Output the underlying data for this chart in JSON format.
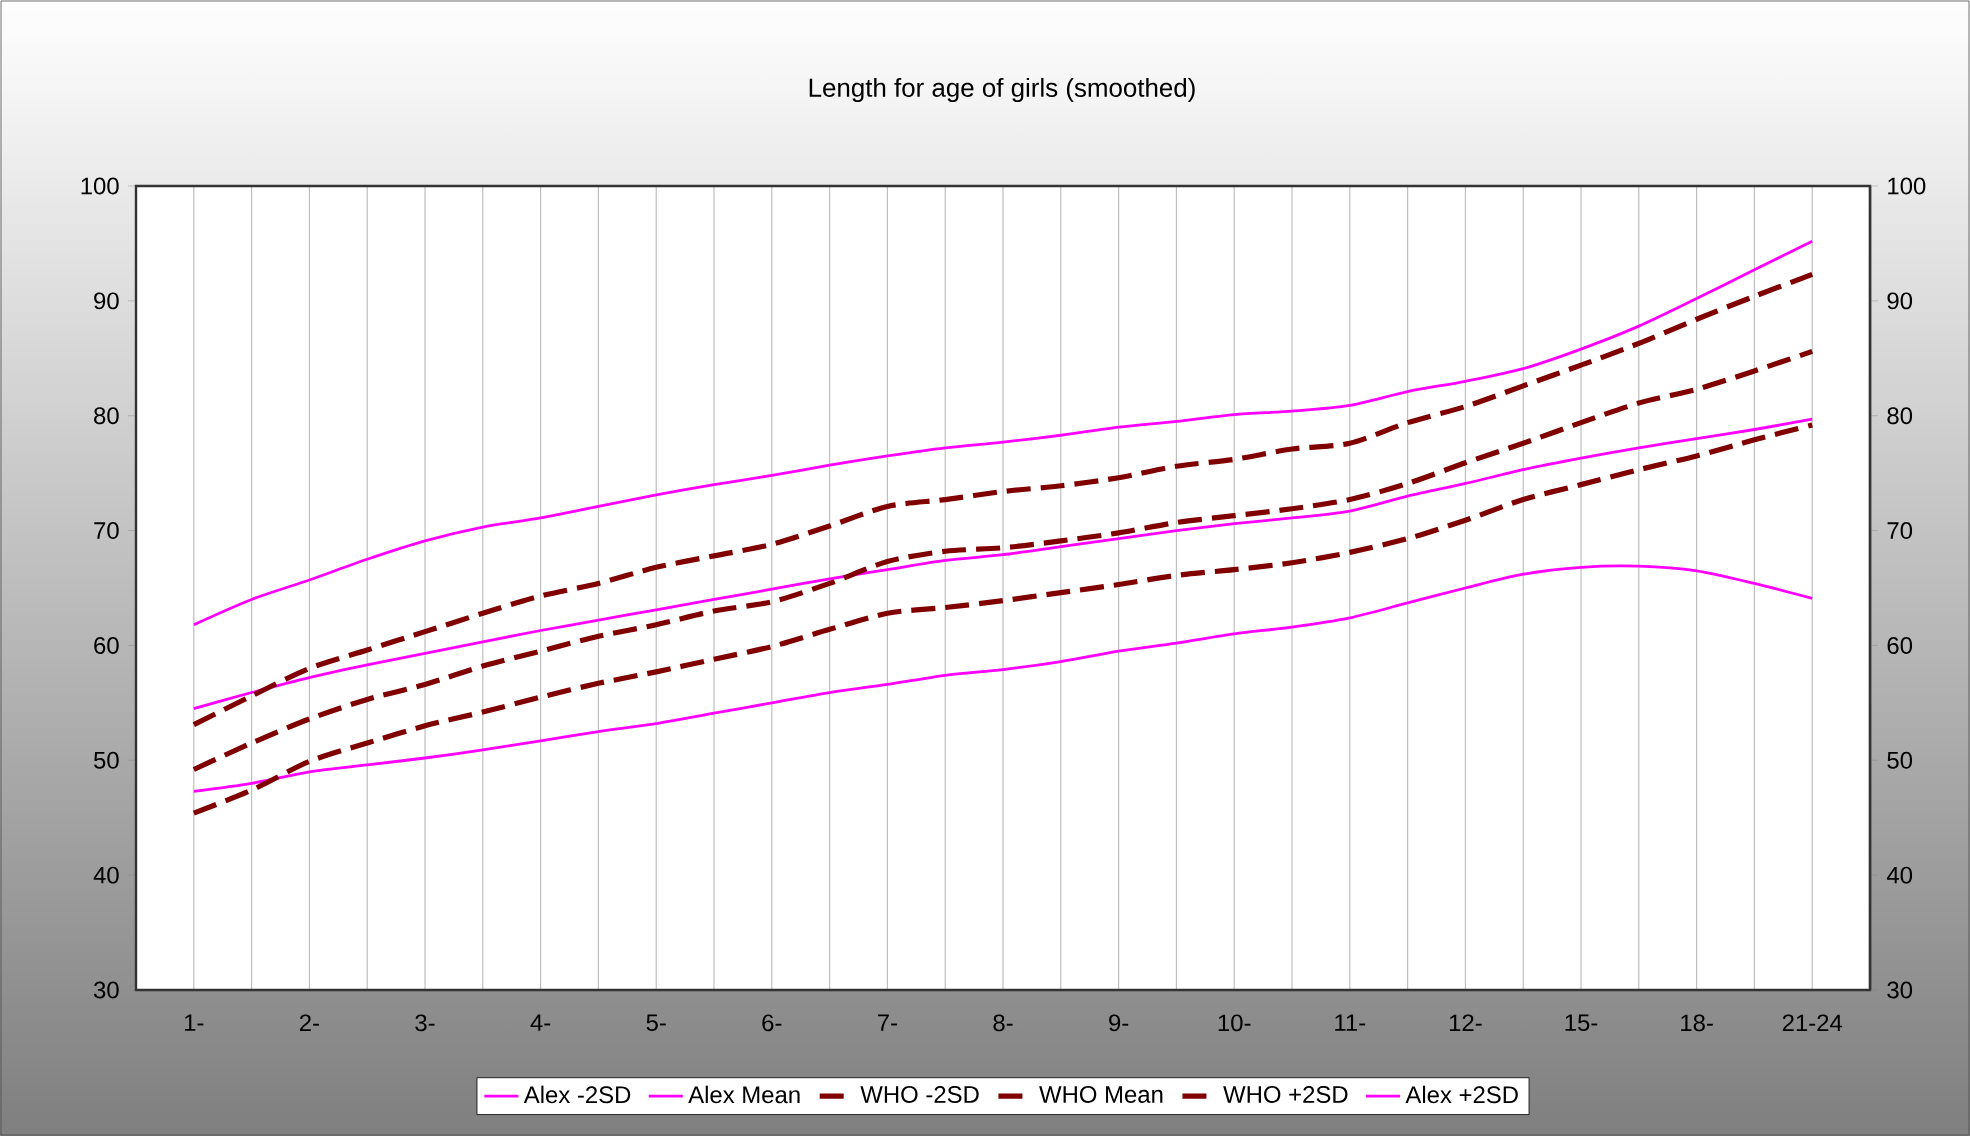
{
  "chart_data": {
    "type": "line",
    "title": "Length for age of girls (smoothed)",
    "categories": [
      "1-",
      null,
      "2-",
      null,
      "3-",
      null,
      "4-",
      null,
      "5-",
      null,
      "6-",
      null,
      "7-",
      null,
      "8-",
      null,
      "9-",
      null,
      "10-",
      null,
      "11-",
      null,
      "12-",
      null,
      "15-",
      null,
      "18-",
      null,
      "21-24"
    ],
    "series": [
      {
        "name": "Alex -2SD",
        "color": "#ff00ff",
        "line_style": "solid",
        "values": [
          47.3,
          48.0,
          49.0,
          49.6,
          50.2,
          50.9,
          51.7,
          52.5,
          53.2,
          54.1,
          55.0,
          55.9,
          56.6,
          57.4,
          57.9,
          58.6,
          59.5,
          60.2,
          61.0,
          61.6,
          62.4,
          63.7,
          65.0,
          66.2,
          66.8,
          66.9,
          66.5,
          65.4,
          64.1
        ]
      },
      {
        "name": "Alex Mean",
        "color": "#ff00ff",
        "line_style": "solid",
        "values": [
          54.5,
          55.9,
          57.2,
          58.3,
          59.3,
          60.3,
          61.3,
          62.2,
          63.1,
          64.0,
          64.9,
          65.8,
          66.6,
          67.4,
          67.9,
          68.6,
          69.3,
          70.0,
          70.6,
          71.1,
          71.7,
          73.0,
          74.1,
          75.3,
          76.3,
          77.2,
          78.0,
          78.8,
          79.7
        ]
      },
      {
        "name": "WHO -2SD",
        "color": "#800000",
        "line_style": "dashed",
        "values": [
          45.4,
          47.4,
          49.9,
          51.5,
          53.0,
          54.2,
          55.5,
          56.7,
          57.7,
          58.8,
          59.9,
          61.4,
          62.8,
          63.3,
          63.9,
          64.6,
          65.3,
          66.1,
          66.6,
          67.2,
          68.1,
          69.3,
          70.9,
          72.7,
          74.0,
          75.3,
          76.5,
          77.9,
          79.2
        ]
      },
      {
        "name": "WHO Mean",
        "color": "#800000",
        "line_style": "dashed",
        "values": [
          49.2,
          51.5,
          53.6,
          55.3,
          56.6,
          58.2,
          59.5,
          60.8,
          61.8,
          63.0,
          63.8,
          65.4,
          67.3,
          68.2,
          68.5,
          69.1,
          69.8,
          70.7,
          71.3,
          71.9,
          72.7,
          74.1,
          75.9,
          77.6,
          79.4,
          81.1,
          82.3,
          83.9,
          85.6
        ]
      },
      {
        "name": "WHO +2SD",
        "color": "#800000",
        "line_style": "dashed",
        "values": [
          53.1,
          55.6,
          58.0,
          59.6,
          61.2,
          62.8,
          64.3,
          65.4,
          66.8,
          67.8,
          68.8,
          70.4,
          72.1,
          72.7,
          73.4,
          73.9,
          74.6,
          75.6,
          76.2,
          77.1,
          77.6,
          79.4,
          80.8,
          82.6,
          84.4,
          86.3,
          88.4,
          90.4,
          92.3
        ]
      },
      {
        "name": "Alex +2SD",
        "color": "#ff00ff",
        "line_style": "solid",
        "values": [
          61.8,
          64.0,
          65.7,
          67.5,
          69.1,
          70.3,
          71.1,
          72.1,
          73.1,
          74.0,
          74.8,
          75.7,
          76.5,
          77.2,
          77.7,
          78.3,
          79.0,
          79.5,
          80.1,
          80.4,
          80.9,
          82.1,
          83.0,
          84.1,
          85.8,
          87.8,
          90.2,
          92.7,
          95.2
        ]
      }
    ],
    "ylim": [
      30,
      100
    ],
    "yticks": [
      30,
      40,
      50,
      60,
      70,
      80,
      90,
      100
    ],
    "y2lim": [
      30,
      100
    ],
    "y2ticks": [
      30,
      40,
      50,
      60,
      70,
      80,
      90,
      100
    ],
    "grid": "x",
    "legend": "bottom"
  }
}
